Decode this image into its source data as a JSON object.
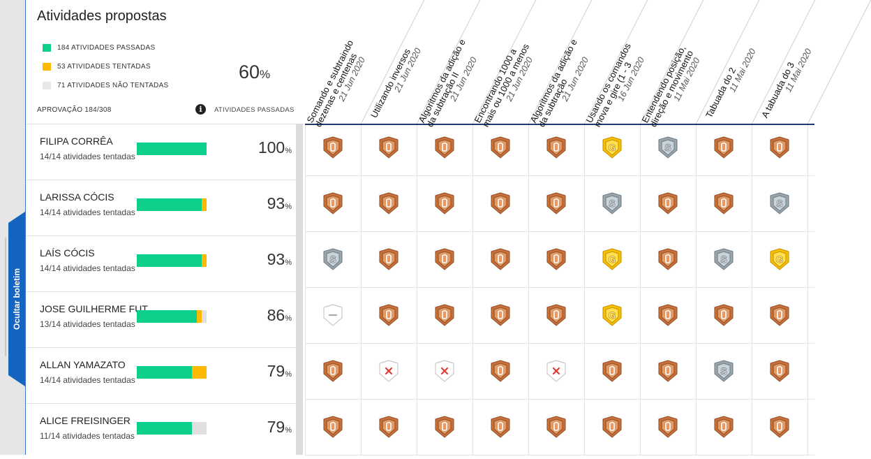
{
  "sidebar_tab": {
    "label": "Ocultar boletim"
  },
  "panel": {
    "title": "Atividades propostas",
    "legend": [
      {
        "label": "184 ATIVIDADES PASSADAS",
        "color": "#0ccf8a"
      },
      {
        "label": "53 ATIVIDADES TENTADAS",
        "color": "#fdb900"
      },
      {
        "label": "71 ATIVIDADES NÃO TENTADAS",
        "color": "#e8e8e8"
      }
    ],
    "overall_pct": "60",
    "pct_sign": "%",
    "approval": "APROVAÇÃO 184/308",
    "info_icon": "info-icon",
    "passed_label": "ATIVIDADES PASSADAS"
  },
  "activities": [
    {
      "title": "Somando e subtraindo",
      "title2": "dezenas e centenas",
      "date": "21 Jun 2020"
    },
    {
      "title": "Utilizando inversos",
      "title2": "",
      "date": "21 Jun 2020"
    },
    {
      "title": "Algoritmos da adição e",
      "title2": "da subtração II",
      "date": "21 Jun 2020"
    },
    {
      "title": "Encontrando 1000 a",
      "title2": "mais ou 1000 a menos",
      "date": "21 Jun 2020"
    },
    {
      "title": "Algoritmos da adição e",
      "title2": "da subtração",
      "date": "21 Jun 2020"
    },
    {
      "title": "Usando os comandos",
      "title2": "mova  e  gire  (1 - 3",
      "date": "16 Jun 2020"
    },
    {
      "title": "Entendendo posição,",
      "title2": "direção e movimento",
      "date": "11 Mai 2020"
    },
    {
      "title": "Tabuada do 2",
      "title2": "",
      "date": "11 Mai 2020"
    },
    {
      "title": "A tabuada do 3",
      "title2": "",
      "date": "11 Mai 2020"
    }
  ],
  "students": [
    {
      "name": "FILIPA CORRÊA",
      "sub": "14/14 atividades tentadas",
      "pct": "100",
      "passed": 14,
      "tried": 0,
      "total": 14,
      "badges": [
        "bronze",
        "bronze",
        "bronze",
        "bronze",
        "bronze",
        "gold",
        "silver",
        "bronze",
        "bronze"
      ]
    },
    {
      "name": "LARISSA CÓCIS",
      "sub": "14/14 atividades tentadas",
      "pct": "93",
      "passed": 13,
      "tried": 1,
      "total": 14,
      "badges": [
        "bronze",
        "bronze",
        "bronze",
        "bronze",
        "bronze",
        "silver",
        "bronze",
        "bronze",
        "silver"
      ]
    },
    {
      "name": "LAÍS CÓCIS",
      "sub": "14/14 atividades tentadas",
      "pct": "93",
      "passed": 13,
      "tried": 1,
      "total": 14,
      "badges": [
        "silver",
        "bronze",
        "bronze",
        "bronze",
        "bronze",
        "gold",
        "bronze",
        "silver",
        "gold"
      ]
    },
    {
      "name": "JOSE GUILHERME FUT",
      "sub": "13/14 atividades tentadas",
      "pct": "86",
      "passed": 12,
      "tried": 1,
      "total": 14,
      "badges": [
        "none",
        "bronze",
        "bronze",
        "bronze",
        "bronze",
        "gold",
        "bronze",
        "bronze",
        "bronze"
      ]
    },
    {
      "name": "ALLAN YAMAZATO",
      "sub": "14/14 atividades tentadas",
      "pct": "79",
      "passed": 11,
      "tried": 3,
      "total": 14,
      "badges": [
        "bronze",
        "failed",
        "failed",
        "bronze",
        "failed",
        "bronze",
        "bronze",
        "silver",
        "bronze"
      ]
    },
    {
      "name": "ALICE FREISINGER",
      "sub": "11/14 atividades tentadas",
      "pct": "79",
      "passed": 11,
      "tried": 0,
      "total": 14,
      "badges": [
        "bronze",
        "bronze",
        "bronze",
        "bronze",
        "bronze",
        "bronze",
        "bronze",
        "bronze",
        "bronze"
      ]
    }
  ],
  "badge_letters": {
    "bronze": "",
    "silver": "S",
    "gold": "G"
  },
  "colors": {
    "bronze": "#c8723e",
    "silver": "#9aa6ae",
    "gold": "#f6c100",
    "failed": "#e53935"
  }
}
